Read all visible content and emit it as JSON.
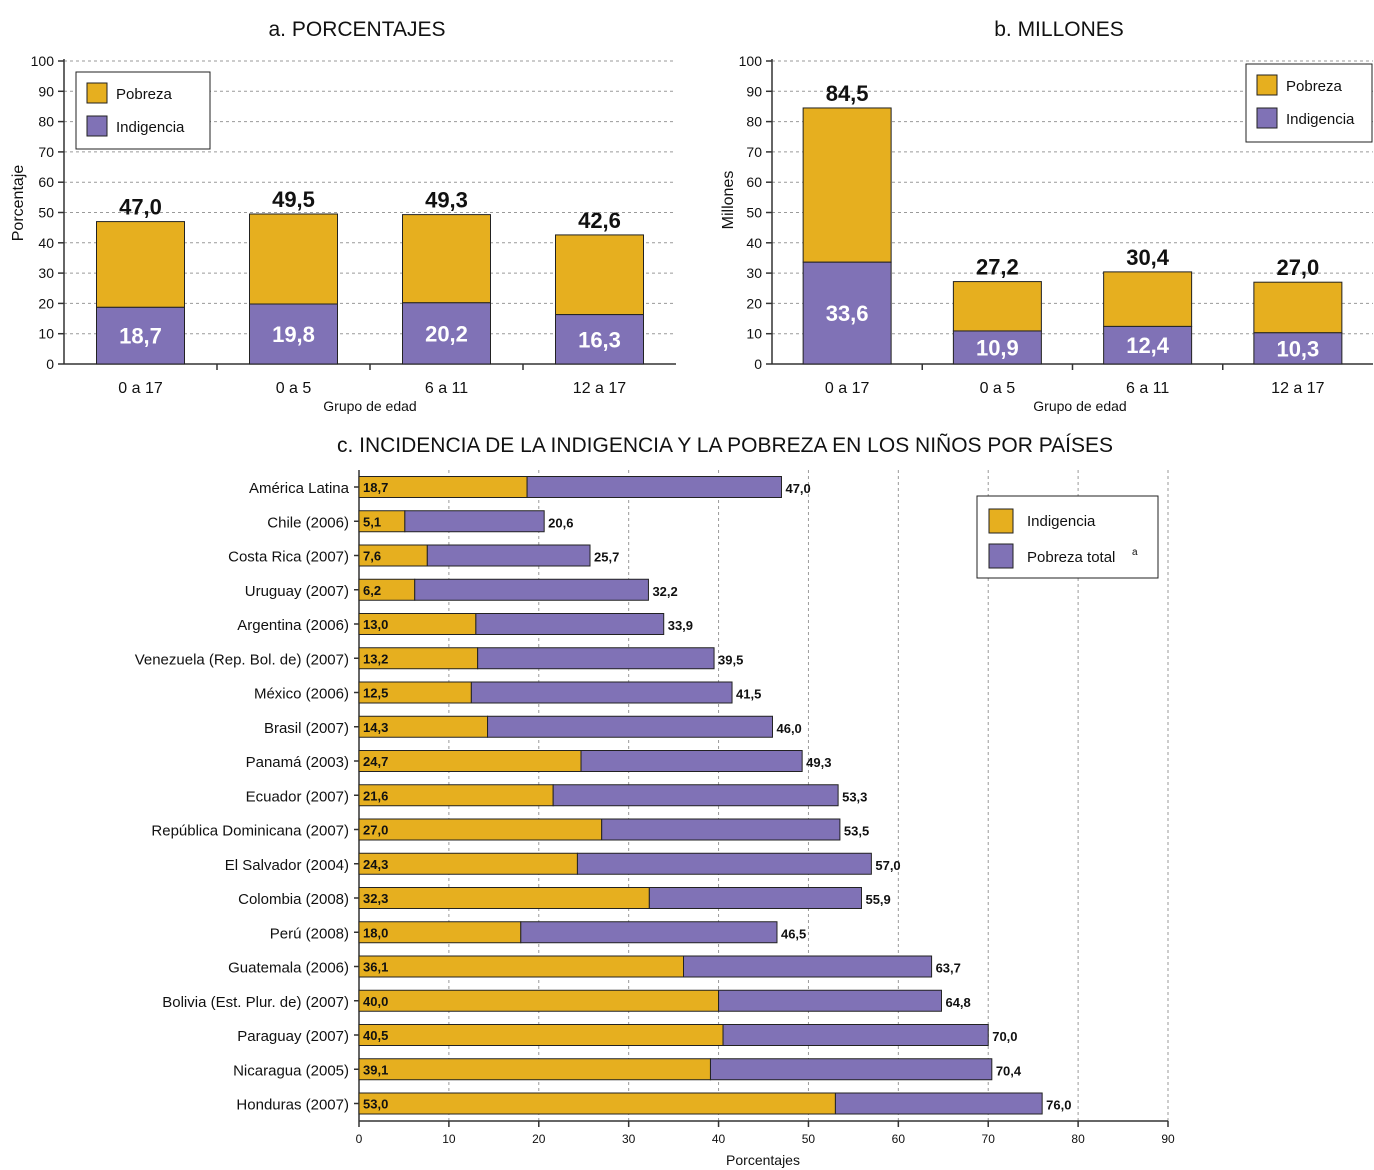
{
  "colors": {
    "pobreza": "#E6AF1F",
    "indigencia": "#8072B6",
    "grid": "#9a9a9a"
  },
  "chart_data": [
    {
      "type": "bar",
      "stacked": true,
      "title": "a. PORCENTAJES",
      "xlabel": "Grupo de edad",
      "ylabel": "Porcentaje",
      "ylim": [
        0,
        100
      ],
      "yticks": [
        "0",
        "10",
        "20",
        "30",
        "40",
        "50",
        "60",
        "70",
        "80",
        "90",
        "100"
      ],
      "categories": [
        "0 a 17",
        "0 a 5",
        "6 a 11",
        "12 a 17"
      ],
      "series": [
        {
          "name": "Indigencia",
          "values": [
            18.7,
            19.8,
            20.2,
            16.3
          ],
          "labels": [
            "18,7",
            "19,8",
            "20,2",
            "16,3"
          ]
        },
        {
          "name": "Pobreza",
          "totals": [
            47.0,
            49.5,
            49.3,
            42.6
          ],
          "labels": [
            "47,0",
            "49,5",
            "49,3",
            "42,6"
          ]
        }
      ],
      "legend": {
        "position": "top-left",
        "entries": [
          "Pobreza",
          "Indigencia"
        ]
      }
    },
    {
      "type": "bar",
      "stacked": true,
      "title": "b. MILLONES",
      "xlabel": "Grupo de edad",
      "ylabel": "Millones",
      "ylim": [
        0,
        100
      ],
      "yticks": [
        "0",
        "10",
        "20",
        "30",
        "40",
        "50",
        "60",
        "70",
        "80",
        "90",
        "100"
      ],
      "categories": [
        "0 a 17",
        "0 a 5",
        "6 a 11",
        "12 a 17"
      ],
      "series": [
        {
          "name": "Indigencia",
          "values": [
            33.6,
            10.9,
            12.4,
            10.3
          ],
          "labels": [
            "33,6",
            "10,9",
            "12,4",
            "10,3"
          ]
        },
        {
          "name": "Pobreza",
          "totals": [
            84.5,
            27.2,
            30.4,
            27.0
          ],
          "labels": [
            "84,5",
            "27,2",
            "30,4",
            "27,0"
          ]
        }
      ],
      "legend": {
        "position": "top-right",
        "entries": [
          "Pobreza",
          "Indigencia"
        ]
      }
    },
    {
      "type": "bar",
      "orientation": "horizontal",
      "stacked": true,
      "title": "c. INCIDENCIA DE LA INDIGENCIA Y LA POBREZA EN LOS NIÑOS POR PAÍSES",
      "xlabel": "Porcentajes",
      "xlim": [
        0,
        90
      ],
      "xticks": [
        "0",
        "10",
        "20",
        "30",
        "40",
        "50",
        "60",
        "70",
        "80",
        "90"
      ],
      "categories": [
        "América Latina",
        "Chile (2006)",
        "Costa Rica (2007)",
        "Uruguay (2007)",
        "Argentina (2006)",
        "Venezuela (Rep. Bol. de) (2007)",
        "México (2006)",
        "Brasil (2007)",
        "Panamá (2003)",
        "Ecuador (2007)",
        "República Dominicana (2007)",
        "El Salvador (2004)",
        "Colombia (2008)",
        "Perú (2008)",
        "Guatemala (2006)",
        "Bolivia (Est. Plur. de) (2007)",
        "Paraguay (2007)",
        "Nicaragua (2005)",
        "Honduras (2007)"
      ],
      "series": [
        {
          "name": "Indigencia",
          "values": [
            18.7,
            5.1,
            7.6,
            6.2,
            13.0,
            13.2,
            12.5,
            14.3,
            24.7,
            21.6,
            27.0,
            24.3,
            32.3,
            18.0,
            36.1,
            40.0,
            40.5,
            39.1,
            53.0
          ],
          "labels": [
            "18,7",
            "5,1",
            "7,6",
            "6,2",
            "13,0",
            "13,2",
            "12,5",
            "14,3",
            "24,7",
            "21,6",
            "27,0",
            "24,3",
            "32,3",
            "18,0",
            "36,1",
            "40,0",
            "40,5",
            "39,1",
            "53,0"
          ]
        },
        {
          "name": "Pobreza total",
          "totals": [
            47.0,
            20.6,
            25.7,
            32.2,
            33.9,
            39.5,
            41.5,
            46.0,
            49.3,
            53.3,
            53.5,
            57.0,
            55.9,
            46.5,
            63.7,
            64.8,
            70.0,
            70.4,
            76.0
          ],
          "labels": [
            "47,0",
            "20,6",
            "25,7",
            "32,2",
            "33,9",
            "39,5",
            "41,5",
            "46,0",
            "49,3",
            "53,3",
            "53,5",
            "57,0",
            "55,9",
            "46,5",
            "63,7",
            "64,8",
            "70,0",
            "70,4",
            "76,0"
          ]
        }
      ],
      "legend": {
        "position": "top-right",
        "entries": [
          "Indigencia",
          "Pobreza total"
        ],
        "superscript": "a"
      }
    }
  ]
}
